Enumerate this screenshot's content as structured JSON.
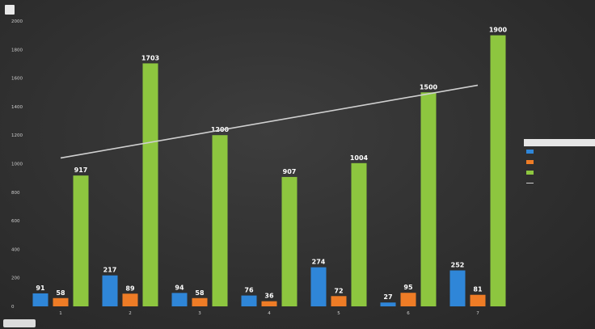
{
  "chart_data": {
    "type": "bar",
    "title": "",
    "xlabel": "",
    "ylabel": "",
    "ylim": [
      0,
      2000
    ],
    "yticks": [
      0,
      200,
      400,
      600,
      800,
      1000,
      1200,
      1400,
      1600,
      1800,
      2000
    ],
    "categories": [
      "1",
      "2",
      "3",
      "4",
      "5",
      "6",
      "7"
    ],
    "series": [
      {
        "values": [
          91,
          217,
          94,
          76,
          274,
          27,
          252
        ],
        "color": "#2f86d8"
      },
      {
        "values": [
          58,
          89,
          58,
          36,
          72,
          95,
          81
        ],
        "color": "#ee7c26"
      },
      {
        "values": [
          917,
          1703,
          1200,
          907,
          1004,
          1500,
          1900
        ],
        "color": "#8dc63f"
      }
    ],
    "trendline": {
      "from": 1040,
      "to": 1550,
      "color": "#d0d0d0"
    },
    "legend_position": "right",
    "grid": false
  }
}
